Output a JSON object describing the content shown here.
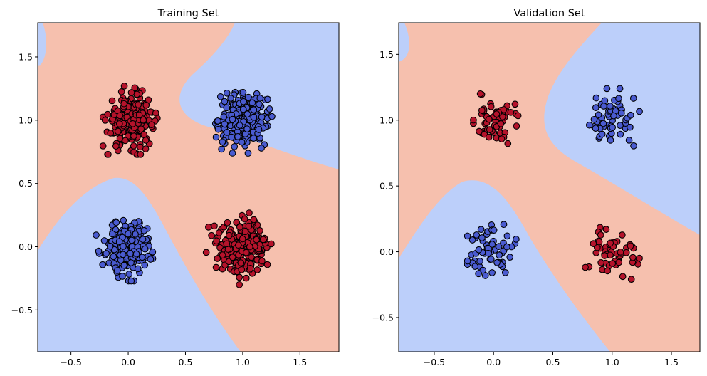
{
  "colors": {
    "class_0_region": "#bccffa",
    "class_1_region": "#f6c0ae",
    "class_0_point": "#4a5bd0",
    "class_1_point": "#b5132b",
    "marker_edge": "#000000"
  },
  "chart_data": [
    {
      "type": "scatter",
      "title": "Training Set",
      "xlabel": "",
      "ylabel": "",
      "xlim": [
        -0.79,
        1.84
      ],
      "ylim": [
        -0.83,
        1.77
      ],
      "x_ticks": [
        -0.5,
        0.0,
        0.5,
        1.0,
        1.5
      ],
      "y_ticks": [
        -0.5,
        0.0,
        0.5,
        1.0,
        1.5
      ],
      "x_tick_labels": [
        "−0.5",
        "0.0",
        "0.5",
        "1.0",
        "1.5"
      ],
      "y_tick_labels": [
        "−0.5",
        "0.0",
        "0.5",
        "1.0",
        "1.5"
      ],
      "grid": false,
      "background": "decision-boundary regions (class 0 = blue, class 1 = salmon)",
      "clusters": [
        {
          "class": 1,
          "center": [
            0.02,
            1.0
          ],
          "spread": 0.1,
          "count": 250,
          "x_range": [
            -0.22,
            0.27
          ],
          "y_range": [
            0.73,
            1.27
          ]
        },
        {
          "class": 0,
          "center": [
            1.0,
            1.0
          ],
          "spread": 0.1,
          "count": 250,
          "x_range": [
            0.67,
            1.33
          ],
          "y_range": [
            0.71,
            1.22
          ]
        },
        {
          "class": 0,
          "center": [
            0.0,
            0.0
          ],
          "spread": 0.1,
          "count": 250,
          "x_range": [
            -0.28,
            0.28
          ],
          "y_range": [
            -0.27,
            0.32
          ]
        },
        {
          "class": 1,
          "center": [
            1.0,
            0.0
          ],
          "spread": 0.1,
          "count": 250,
          "x_range": [
            0.68,
            1.34
          ],
          "y_range": [
            -0.33,
            0.27
          ]
        }
      ]
    },
    {
      "type": "scatter",
      "title": "Validation Set",
      "xlabel": "",
      "ylabel": "",
      "xlim": [
        -0.8,
        1.74
      ],
      "ylim": [
        -0.76,
        1.74
      ],
      "x_ticks": [
        -0.5,
        0.0,
        0.5,
        1.0,
        1.5
      ],
      "y_ticks": [
        -0.5,
        0.0,
        0.5,
        1.0,
        1.5
      ],
      "x_tick_labels": [
        "−0.5",
        "0.0",
        "0.5",
        "1.0",
        "1.5"
      ],
      "y_tick_labels": [
        "−0.5",
        "0.0",
        "0.5",
        "1.0",
        "1.5"
      ],
      "grid": false,
      "background": "decision-boundary regions (class 0 = blue, class 1 = salmon)",
      "clusters": [
        {
          "class": 1,
          "center": [
            0.02,
            1.0
          ],
          "spread": 0.1,
          "count": 60,
          "x_range": [
            -0.17,
            0.24
          ],
          "y_range": [
            0.77,
            1.2
          ]
        },
        {
          "class": 0,
          "center": [
            1.0,
            1.0
          ],
          "spread": 0.1,
          "count": 60,
          "x_range": [
            0.77,
            1.23
          ],
          "y_range": [
            0.8,
            1.24
          ]
        },
        {
          "class": 0,
          "center": [
            0.0,
            0.0
          ],
          "spread": 0.1,
          "count": 60,
          "x_range": [
            -0.22,
            0.26
          ],
          "y_range": [
            -0.22,
            0.22
          ]
        },
        {
          "class": 1,
          "center": [
            1.0,
            0.0
          ],
          "spread": 0.1,
          "count": 60,
          "x_range": [
            0.77,
            1.23
          ],
          "y_range": [
            -0.26,
            0.22
          ]
        }
      ]
    }
  ]
}
